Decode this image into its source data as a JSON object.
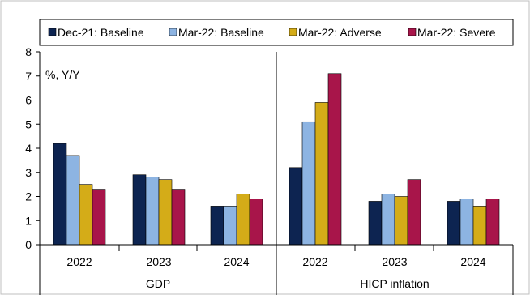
{
  "chart_data": {
    "type": "bar",
    "ylabel": "%, Y/Y",
    "ylim": [
      0,
      8
    ],
    "yticks": [
      "0",
      "1",
      "2",
      "3",
      "4",
      "5",
      "6",
      "7",
      "8"
    ],
    "grid": false,
    "legend_position": "top",
    "panels": [
      {
        "name": "GDP",
        "categories": [
          "2022",
          "2023",
          "2024"
        ],
        "series": [
          {
            "name": "Dec-21: Baseline",
            "color": "#0d2451",
            "values": [
              4.2,
              2.9,
              1.6
            ]
          },
          {
            "name": "Mar-22: Baseline",
            "color": "#8db4e2",
            "values": [
              3.7,
              2.8,
              1.6
            ]
          },
          {
            "name": "Mar-22: Adverse",
            "color": "#d4ac18",
            "values": [
              2.5,
              2.7,
              2.1
            ]
          },
          {
            "name": "Mar-22: Severe",
            "color": "#a8154a",
            "values": [
              2.3,
              2.3,
              1.9
            ]
          }
        ]
      },
      {
        "name": "HICP inflation",
        "categories": [
          "2022",
          "2023",
          "2024"
        ],
        "series": [
          {
            "name": "Dec-21: Baseline",
            "color": "#0d2451",
            "values": [
              3.2,
              1.8,
              1.8
            ]
          },
          {
            "name": "Mar-22: Baseline",
            "color": "#8db4e2",
            "values": [
              5.1,
              2.1,
              1.9
            ]
          },
          {
            "name": "Mar-22: Adverse",
            "color": "#d4ac18",
            "values": [
              5.9,
              2.0,
              1.6
            ]
          },
          {
            "name": "Mar-22: Severe",
            "color": "#a8154a",
            "values": [
              7.1,
              2.7,
              1.9
            ]
          }
        ]
      }
    ]
  }
}
